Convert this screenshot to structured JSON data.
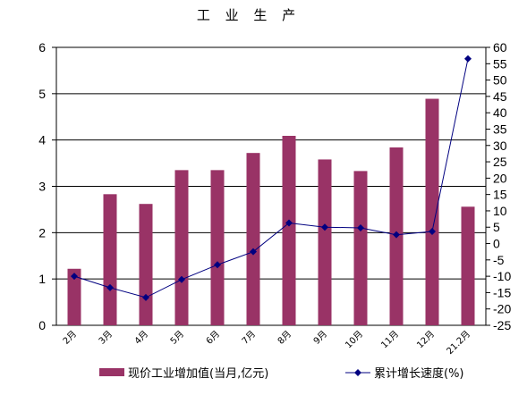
{
  "chart_data": {
    "type": "bar+line",
    "title": "工 业 生 产",
    "categories": [
      "2月",
      "3月",
      "4月",
      "5月",
      "6月",
      "7月",
      "8月",
      "9月",
      "10月",
      "11月",
      "12月",
      "21.2月"
    ],
    "series": [
      {
        "name": "现价工业增加值(当月,亿元)",
        "type": "bar",
        "axis": "left",
        "color": "#993366",
        "values": [
          1.22,
          2.83,
          2.62,
          3.35,
          3.35,
          3.72,
          4.09,
          3.58,
          3.33,
          3.84,
          4.89,
          2.56
        ]
      },
      {
        "name": "累计增长速度(%)",
        "type": "line",
        "axis": "right",
        "color": "#000080",
        "values": [
          -10.0,
          -13.5,
          -16.5,
          -11.0,
          -6.5,
          -2.5,
          6.3,
          5.0,
          4.8,
          2.7,
          3.7,
          56.5
        ]
      }
    ],
    "left_axis": {
      "min": 0,
      "max": 6,
      "step": 1
    },
    "right_axis": {
      "min": -25,
      "max": 60,
      "step": 5
    },
    "grid": "horizontal",
    "legend": "bottom"
  }
}
